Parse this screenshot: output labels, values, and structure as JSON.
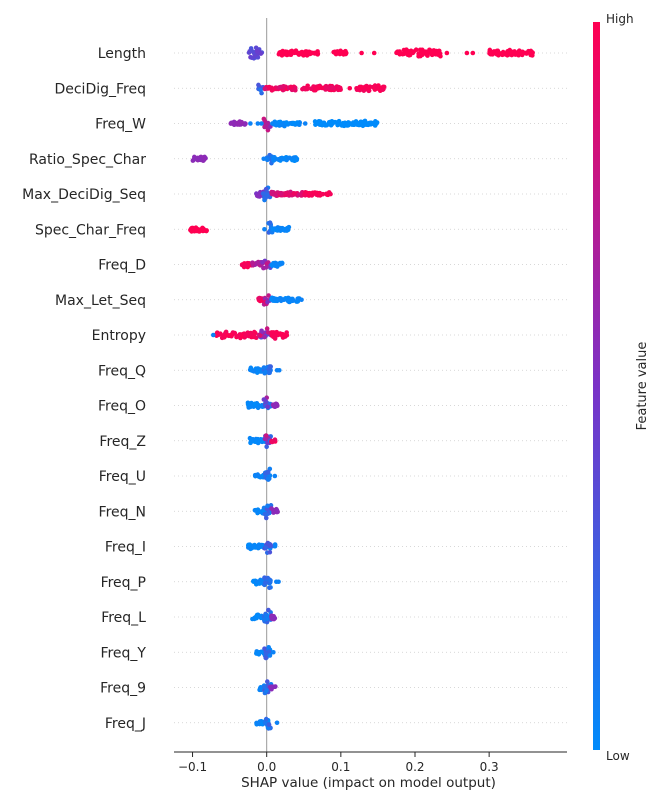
{
  "chart_data": {
    "type": "scatter",
    "variant": "shap-beeswarm-summary",
    "xlabel": "SHAP value (impact on model output)",
    "xlim": [
      -0.125,
      0.405
    ],
    "xticks": [
      -0.1,
      0.0,
      0.1,
      0.2,
      0.3
    ],
    "xtick_labels": [
      "−0.1",
      "0.0",
      "0.1",
      "0.2",
      "0.3"
    ],
    "zero_line": true,
    "colorbar": {
      "title": "Feature value",
      "high_label": "High",
      "low_label": "Low",
      "low_color": "#008bfb",
      "high_color": "#ff0052"
    },
    "features": [
      {
        "name": "Length",
        "segments": [
          {
            "from": -0.026,
            "to": -0.006,
            "c0": 0.3,
            "c1": 0.5,
            "w": 1.0
          },
          {
            "from": 0.015,
            "to": 0.07,
            "c0": 1.0,
            "c1": 1.0,
            "w": 0.35
          },
          {
            "from": 0.09,
            "to": 0.108,
            "c0": 1.0,
            "c1": 1.0,
            "w": 0.4
          },
          {
            "from": 0.175,
            "to": 0.235,
            "c0": 1.0,
            "c1": 1.0,
            "w": 0.45
          },
          {
            "from": 0.3,
            "to": 0.36,
            "c0": 1.0,
            "c1": 1.0,
            "w": 0.45
          }
        ],
        "points": [
          0.128,
          0.145,
          0.243,
          0.27,
          0.278
        ]
      },
      {
        "name": "DeciDig_Freq",
        "segments": [
          {
            "from": -0.012,
            "to": -0.004,
            "c0": 0.05,
            "c1": 0.35,
            "w": 1.0
          },
          {
            "from": -0.004,
            "to": 0.04,
            "c0": 0.85,
            "c1": 1.0,
            "w": 0.3
          },
          {
            "from": 0.045,
            "to": 0.1,
            "c0": 0.9,
            "c1": 1.0,
            "w": 0.35
          },
          {
            "from": 0.12,
            "to": 0.16,
            "c0": 0.95,
            "c1": 1.0,
            "w": 0.4
          }
        ],
        "points": [
          0.112
        ]
      },
      {
        "name": "Freq_W",
        "segments": [
          {
            "from": -0.05,
            "to": -0.028,
            "c0": 0.55,
            "c1": 0.6,
            "w": 0.3
          },
          {
            "from": -0.004,
            "to": 0.006,
            "c0": 0.55,
            "c1": 0.85,
            "w": 1.0
          },
          {
            "from": 0.007,
            "to": 0.045,
            "c0": 0.0,
            "c1": 0.05,
            "w": 0.35
          },
          {
            "from": 0.065,
            "to": 0.15,
            "c0": 0.0,
            "c1": 0.0,
            "w": 0.35
          }
        ],
        "points": [
          -0.022,
          -0.012,
          -0.007,
          0.052
        ]
      },
      {
        "name": "Ratio_Spec_Char",
        "segments": [
          {
            "from": -0.1,
            "to": -0.082,
            "c0": 0.55,
            "c1": 0.6,
            "w": 0.35
          },
          {
            "from": 0.0,
            "to": 0.008,
            "c0": 0.05,
            "c1": 0.2,
            "w": 1.0
          },
          {
            "from": 0.008,
            "to": 0.042,
            "c0": 0.0,
            "c1": 0.05,
            "w": 0.3
          }
        ],
        "points": [
          -0.004
        ]
      },
      {
        "name": "Max_DeciDig_Seq",
        "segments": [
          {
            "from": -0.014,
            "to": -0.004,
            "c0": 0.5,
            "c1": 0.55,
            "w": 0.4
          },
          {
            "from": -0.006,
            "to": 0.006,
            "c0": 0.05,
            "c1": 0.3,
            "w": 1.0
          },
          {
            "from": 0.006,
            "to": 0.05,
            "c0": 0.8,
            "c1": 0.95,
            "w": 0.3
          },
          {
            "from": 0.05,
            "to": 0.088,
            "c0": 0.95,
            "c1": 1.0,
            "w": 0.25
          }
        ],
        "points": []
      },
      {
        "name": "Spec_Char_Freq",
        "segments": [
          {
            "from": -0.103,
            "to": -0.08,
            "c0": 1.0,
            "c1": 1.0,
            "w": 0.35
          },
          {
            "from": 0.0,
            "to": 0.008,
            "c0": 0.05,
            "c1": 0.25,
            "w": 1.0
          },
          {
            "from": 0.008,
            "to": 0.03,
            "c0": 0.0,
            "c1": 0.05,
            "w": 0.3
          }
        ],
        "points": [
          -0.003
        ]
      },
      {
        "name": "Freq_D",
        "segments": [
          {
            "from": -0.034,
            "to": -0.018,
            "c0": 0.95,
            "c1": 1.0,
            "w": 0.35
          },
          {
            "from": -0.02,
            "to": -0.006,
            "c0": 0.6,
            "c1": 0.75,
            "w": 0.35
          },
          {
            "from": -0.006,
            "to": 0.006,
            "c0": 0.3,
            "c1": 0.85,
            "w": 1.0
          },
          {
            "from": 0.006,
            "to": 0.022,
            "c0": 0.0,
            "c1": 0.05,
            "w": 0.3
          }
        ],
        "points": []
      },
      {
        "name": "Max_Let_Seq",
        "segments": [
          {
            "from": -0.012,
            "to": -0.004,
            "c0": 0.9,
            "c1": 1.0,
            "w": 0.4
          },
          {
            "from": -0.004,
            "to": 0.006,
            "c0": 0.4,
            "c1": 0.95,
            "w": 1.0
          },
          {
            "from": 0.006,
            "to": 0.045,
            "c0": 0.0,
            "c1": 0.05,
            "w": 0.35
          }
        ],
        "points": [
          0.047
        ]
      },
      {
        "name": "Entropy",
        "segments": [
          {
            "from": -0.068,
            "to": -0.014,
            "c0": 0.95,
            "c1": 1.0,
            "w": 0.45
          },
          {
            "from": -0.01,
            "to": 0.006,
            "c0": 0.35,
            "c1": 0.9,
            "w": 1.0
          },
          {
            "from": 0.006,
            "to": 0.028,
            "c0": 0.95,
            "c1": 1.0,
            "w": 0.5
          }
        ],
        "points": [
          -0.072
        ]
      },
      {
        "name": "Freq_Q",
        "segments": [
          {
            "from": -0.024,
            "to": 0.006,
            "c0": 0.0,
            "c1": 0.05,
            "w": 0.35
          },
          {
            "from": -0.004,
            "to": 0.006,
            "c0": 0.05,
            "c1": 0.25,
            "w": 1.0
          }
        ],
        "points": [
          0.014,
          0.017
        ]
      },
      {
        "name": "Freq_O",
        "segments": [
          {
            "from": -0.026,
            "to": 0.006,
            "c0": 0.0,
            "c1": 0.05,
            "w": 0.35
          },
          {
            "from": -0.004,
            "to": 0.006,
            "c0": 0.1,
            "c1": 0.7,
            "w": 1.0
          },
          {
            "from": 0.006,
            "to": 0.015,
            "c0": 0.55,
            "c1": 0.6,
            "w": 0.35
          }
        ],
        "points": []
      },
      {
        "name": "Freq_Z",
        "segments": [
          {
            "from": -0.024,
            "to": 0.0,
            "c0": 0.0,
            "c1": 0.05,
            "w": 0.35
          },
          {
            "from": -0.004,
            "to": 0.006,
            "c0": 0.1,
            "c1": 0.8,
            "w": 1.0
          },
          {
            "from": 0.006,
            "to": 0.012,
            "c0": 0.9,
            "c1": 1.0,
            "w": 0.35
          }
        ],
        "points": []
      },
      {
        "name": "Freq_U",
        "segments": [
          {
            "from": -0.016,
            "to": 0.006,
            "c0": 0.0,
            "c1": 0.05,
            "w": 0.35
          },
          {
            "from": -0.004,
            "to": 0.006,
            "c0": 0.05,
            "c1": 0.25,
            "w": 1.0
          }
        ],
        "points": [
          0.011
        ]
      },
      {
        "name": "Freq_N",
        "segments": [
          {
            "from": -0.016,
            "to": 0.006,
            "c0": 0.0,
            "c1": 0.05,
            "w": 0.35
          },
          {
            "from": -0.004,
            "to": 0.006,
            "c0": 0.05,
            "c1": 0.3,
            "w": 1.0
          },
          {
            "from": 0.006,
            "to": 0.015,
            "c0": 0.55,
            "c1": 0.6,
            "w": 0.35
          }
        ],
        "points": []
      },
      {
        "name": "Freq_I",
        "segments": [
          {
            "from": -0.025,
            "to": 0.012,
            "c0": 0.0,
            "c1": 0.05,
            "w": 0.35
          },
          {
            "from": -0.004,
            "to": 0.006,
            "c0": 0.1,
            "c1": 0.4,
            "w": 1.0
          }
        ],
        "points": []
      },
      {
        "name": "Freq_P",
        "segments": [
          {
            "from": -0.018,
            "to": 0.006,
            "c0": 0.0,
            "c1": 0.05,
            "w": 0.35
          },
          {
            "from": -0.004,
            "to": 0.006,
            "c0": 0.05,
            "c1": 0.25,
            "w": 1.0
          }
        ],
        "points": [
          0.013,
          0.016
        ]
      },
      {
        "name": "Freq_L",
        "segments": [
          {
            "from": -0.02,
            "to": 0.006,
            "c0": 0.0,
            "c1": 0.05,
            "w": 0.35
          },
          {
            "from": -0.004,
            "to": 0.006,
            "c0": 0.05,
            "c1": 0.3,
            "w": 1.0
          },
          {
            "from": 0.006,
            "to": 0.012,
            "c0": 0.55,
            "c1": 0.6,
            "w": 0.35
          }
        ],
        "points": []
      },
      {
        "name": "Freq_Y",
        "segments": [
          {
            "from": -0.014,
            "to": 0.006,
            "c0": 0.0,
            "c1": 0.05,
            "w": 0.35
          },
          {
            "from": -0.004,
            "to": 0.006,
            "c0": 0.05,
            "c1": 0.3,
            "w": 1.0
          }
        ],
        "points": [
          0.009
        ]
      },
      {
        "name": "Freq_9",
        "segments": [
          {
            "from": -0.01,
            "to": 0.006,
            "c0": 0.0,
            "c1": 0.05,
            "w": 0.35
          },
          {
            "from": -0.004,
            "to": 0.006,
            "c0": 0.05,
            "c1": 0.3,
            "w": 1.0
          },
          {
            "from": 0.004,
            "to": 0.012,
            "c0": 0.55,
            "c1": 0.6,
            "w": 0.35
          }
        ],
        "points": []
      },
      {
        "name": "Freq_J",
        "segments": [
          {
            "from": -0.014,
            "to": 0.004,
            "c0": 0.0,
            "c1": 0.05,
            "w": 0.35
          },
          {
            "from": -0.004,
            "to": 0.006,
            "c0": 0.05,
            "c1": 0.3,
            "w": 1.0
          }
        ],
        "points": [
          0.014
        ]
      }
    ]
  }
}
